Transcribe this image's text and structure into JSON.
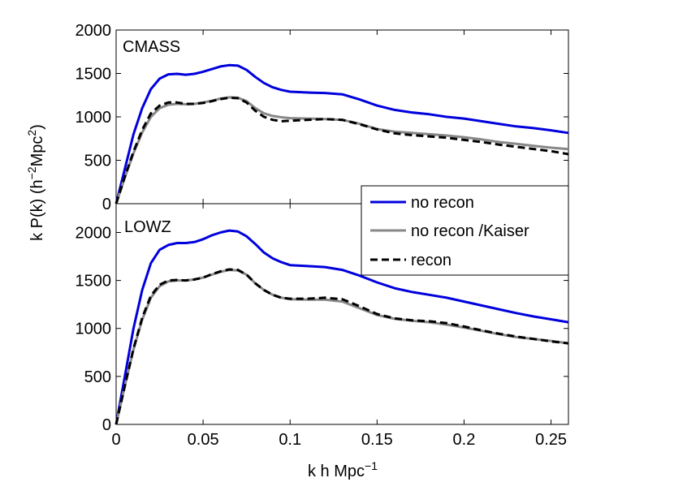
{
  "chart_data": [
    {
      "type": "line",
      "panel": "top",
      "title": "CMASS",
      "xlabel": "",
      "ylabel": "k P(k) (h^-2 Mpc^2)",
      "xlim": [
        0,
        0.26
      ],
      "ylim": [
        0,
        2000
      ],
      "yticks": [
        0,
        500,
        1000,
        1500,
        2000
      ],
      "ytick_labels": [
        "0",
        "500",
        "1000",
        "1500",
        "2000"
      ],
      "series": [
        {
          "name": "no recon",
          "color": "#0000dd",
          "style": "solid",
          "points": [
            [
              0,
              0
            ],
            [
              0.005,
              400
            ],
            [
              0.01,
              800
            ],
            [
              0.015,
              1100
            ],
            [
              0.02,
              1320
            ],
            [
              0.025,
              1440
            ],
            [
              0.03,
              1490
            ],
            [
              0.035,
              1495
            ],
            [
              0.04,
              1485
            ],
            [
              0.045,
              1495
            ],
            [
              0.05,
              1520
            ],
            [
              0.055,
              1550
            ],
            [
              0.06,
              1580
            ],
            [
              0.065,
              1595
            ],
            [
              0.07,
              1590
            ],
            [
              0.075,
              1540
            ],
            [
              0.08,
              1460
            ],
            [
              0.085,
              1390
            ],
            [
              0.09,
              1340
            ],
            [
              0.095,
              1310
            ],
            [
              0.1,
              1290
            ],
            [
              0.11,
              1280
            ],
            [
              0.12,
              1275
            ],
            [
              0.13,
              1260
            ],
            [
              0.14,
              1200
            ],
            [
              0.15,
              1130
            ],
            [
              0.16,
              1080
            ],
            [
              0.17,
              1050
            ],
            [
              0.18,
              1030
            ],
            [
              0.19,
              1000
            ],
            [
              0.2,
              980
            ],
            [
              0.21,
              950
            ],
            [
              0.22,
              920
            ],
            [
              0.23,
              890
            ],
            [
              0.24,
              870
            ],
            [
              0.25,
              845
            ],
            [
              0.26,
              815
            ]
          ]
        },
        {
          "name": "no recon /Kaiser",
          "color": "#888888",
          "style": "solid",
          "points": [
            [
              0,
              0
            ],
            [
              0.005,
              300
            ],
            [
              0.01,
              580
            ],
            [
              0.015,
              820
            ],
            [
              0.02,
              1000
            ],
            [
              0.025,
              1100
            ],
            [
              0.03,
              1140
            ],
            [
              0.035,
              1150
            ],
            [
              0.04,
              1145
            ],
            [
              0.045,
              1150
            ],
            [
              0.05,
              1165
            ],
            [
              0.055,
              1185
            ],
            [
              0.06,
              1210
            ],
            [
              0.065,
              1225
            ],
            [
              0.07,
              1220
            ],
            [
              0.075,
              1180
            ],
            [
              0.08,
              1100
            ],
            [
              0.085,
              1040
            ],
            [
              0.09,
              1010
            ],
            [
              0.095,
              995
            ],
            [
              0.1,
              985
            ],
            [
              0.11,
              980
            ],
            [
              0.12,
              975
            ],
            [
              0.13,
              965
            ],
            [
              0.14,
              920
            ],
            [
              0.15,
              860
            ],
            [
              0.16,
              830
            ],
            [
              0.17,
              815
            ],
            [
              0.18,
              800
            ],
            [
              0.19,
              785
            ],
            [
              0.2,
              765
            ],
            [
              0.21,
              740
            ],
            [
              0.22,
              710
            ],
            [
              0.23,
              690
            ],
            [
              0.24,
              665
            ],
            [
              0.25,
              645
            ],
            [
              0.26,
              628
            ]
          ]
        },
        {
          "name": "recon",
          "color": "#000000",
          "style": "dashed",
          "points": [
            [
              0,
              0
            ],
            [
              0.005,
              310
            ],
            [
              0.01,
              600
            ],
            [
              0.015,
              850
            ],
            [
              0.02,
              1040
            ],
            [
              0.025,
              1130
            ],
            [
              0.03,
              1165
            ],
            [
              0.035,
              1165
            ],
            [
              0.04,
              1150
            ],
            [
              0.045,
              1150
            ],
            [
              0.05,
              1160
            ],
            [
              0.055,
              1180
            ],
            [
              0.06,
              1205
            ],
            [
              0.065,
              1220
            ],
            [
              0.07,
              1215
            ],
            [
              0.075,
              1165
            ],
            [
              0.08,
              1070
            ],
            [
              0.085,
              1000
            ],
            [
              0.09,
              965
            ],
            [
              0.095,
              950
            ],
            [
              0.1,
              955
            ],
            [
              0.11,
              965
            ],
            [
              0.12,
              975
            ],
            [
              0.13,
              965
            ],
            [
              0.14,
              915
            ],
            [
              0.15,
              855
            ],
            [
              0.16,
              810
            ],
            [
              0.17,
              790
            ],
            [
              0.18,
              775
            ],
            [
              0.19,
              760
            ],
            [
              0.2,
              735
            ],
            [
              0.21,
              710
            ],
            [
              0.22,
              680
            ],
            [
              0.23,
              655
            ],
            [
              0.24,
              630
            ],
            [
              0.25,
              605
            ],
            [
              0.26,
              570
            ]
          ]
        }
      ]
    },
    {
      "type": "line",
      "panel": "bottom",
      "title": "LOWZ",
      "xlabel": "k h Mpc^-1",
      "ylabel": "k P(k) (h^-2 Mpc^2)",
      "xlim": [
        0,
        0.26
      ],
      "ylim": [
        0,
        2300
      ],
      "xticks": [
        0,
        0.05,
        0.1,
        0.15,
        0.2,
        0.25
      ],
      "xtick_labels": [
        "0",
        "0.05",
        "0.1",
        "0.15",
        "0.2",
        "0.25"
      ],
      "yticks": [
        0,
        500,
        1000,
        1500,
        2000
      ],
      "ytick_labels": [
        "0",
        "500",
        "1000",
        "1500",
        "2000"
      ],
      "series": [
        {
          "name": "no recon",
          "color": "#0000dd",
          "style": "solid",
          "points": [
            [
              0,
              0
            ],
            [
              0.005,
              500
            ],
            [
              0.01,
              1000
            ],
            [
              0.015,
              1400
            ],
            [
              0.02,
              1680
            ],
            [
              0.025,
              1820
            ],
            [
              0.03,
              1870
            ],
            [
              0.035,
              1890
            ],
            [
              0.04,
              1890
            ],
            [
              0.045,
              1900
            ],
            [
              0.05,
              1930
            ],
            [
              0.055,
              1970
            ],
            [
              0.06,
              2000
            ],
            [
              0.065,
              2020
            ],
            [
              0.07,
              2010
            ],
            [
              0.075,
              1960
            ],
            [
              0.08,
              1880
            ],
            [
              0.085,
              1790
            ],
            [
              0.09,
              1730
            ],
            [
              0.095,
              1690
            ],
            [
              0.1,
              1660
            ],
            [
              0.11,
              1650
            ],
            [
              0.12,
              1640
            ],
            [
              0.13,
              1610
            ],
            [
              0.14,
              1550
            ],
            [
              0.15,
              1480
            ],
            [
              0.16,
              1420
            ],
            [
              0.17,
              1380
            ],
            [
              0.18,
              1350
            ],
            [
              0.19,
              1320
            ],
            [
              0.2,
              1280
            ],
            [
              0.21,
              1240
            ],
            [
              0.22,
              1200
            ],
            [
              0.23,
              1160
            ],
            [
              0.24,
              1125
            ],
            [
              0.25,
              1095
            ],
            [
              0.26,
              1065
            ]
          ]
        },
        {
          "name": "no recon /Kaiser",
          "color": "#888888",
          "style": "solid",
          "points": [
            [
              0,
              0
            ],
            [
              0.005,
              400
            ],
            [
              0.01,
              780
            ],
            [
              0.015,
              1090
            ],
            [
              0.02,
              1320
            ],
            [
              0.025,
              1440
            ],
            [
              0.03,
              1490
            ],
            [
              0.035,
              1500
            ],
            [
              0.04,
              1500
            ],
            [
              0.045,
              1510
            ],
            [
              0.05,
              1530
            ],
            [
              0.055,
              1560
            ],
            [
              0.06,
              1590
            ],
            [
              0.065,
              1610
            ],
            [
              0.07,
              1605
            ],
            [
              0.075,
              1560
            ],
            [
              0.08,
              1470
            ],
            [
              0.085,
              1400
            ],
            [
              0.09,
              1350
            ],
            [
              0.095,
              1320
            ],
            [
              0.1,
              1305
            ],
            [
              0.11,
              1300
            ],
            [
              0.12,
              1300
            ],
            [
              0.13,
              1280
            ],
            [
              0.14,
              1210
            ],
            [
              0.15,
              1140
            ],
            [
              0.16,
              1100
            ],
            [
              0.17,
              1080
            ],
            [
              0.18,
              1065
            ],
            [
              0.19,
              1040
            ],
            [
              0.2,
              1010
            ],
            [
              0.21,
              975
            ],
            [
              0.22,
              940
            ],
            [
              0.23,
              910
            ],
            [
              0.24,
              890
            ],
            [
              0.25,
              870
            ],
            [
              0.26,
              845
            ]
          ]
        },
        {
          "name": "recon",
          "color": "#000000",
          "style": "dashed",
          "points": [
            [
              0,
              0
            ],
            [
              0.005,
              400
            ],
            [
              0.01,
              790
            ],
            [
              0.015,
              1110
            ],
            [
              0.02,
              1340
            ],
            [
              0.025,
              1455
            ],
            [
              0.03,
              1500
            ],
            [
              0.035,
              1505
            ],
            [
              0.04,
              1500
            ],
            [
              0.045,
              1510
            ],
            [
              0.05,
              1530
            ],
            [
              0.055,
              1565
            ],
            [
              0.06,
              1595
            ],
            [
              0.065,
              1615
            ],
            [
              0.07,
              1610
            ],
            [
              0.075,
              1560
            ],
            [
              0.08,
              1470
            ],
            [
              0.085,
              1400
            ],
            [
              0.09,
              1350
            ],
            [
              0.095,
              1320
            ],
            [
              0.1,
              1310
            ],
            [
              0.11,
              1310
            ],
            [
              0.12,
              1320
            ],
            [
              0.13,
              1305
            ],
            [
              0.14,
              1230
            ],
            [
              0.15,
              1150
            ],
            [
              0.16,
              1105
            ],
            [
              0.17,
              1085
            ],
            [
              0.18,
              1075
            ],
            [
              0.19,
              1055
            ],
            [
              0.2,
              1020
            ],
            [
              0.21,
              980
            ],
            [
              0.22,
              945
            ],
            [
              0.23,
              915
            ],
            [
              0.24,
              890
            ],
            [
              0.25,
              865
            ],
            [
              0.26,
              845
            ]
          ]
        }
      ]
    }
  ],
  "legend": {
    "placement": "right, between panels",
    "items": [
      {
        "label": "no recon",
        "color": "#0000dd",
        "style": "solid"
      },
      {
        "label": "no recon /Kaiser",
        "color": "#888888",
        "style": "solid"
      },
      {
        "label": "recon",
        "color": "#000000",
        "style": "dashed"
      }
    ]
  }
}
